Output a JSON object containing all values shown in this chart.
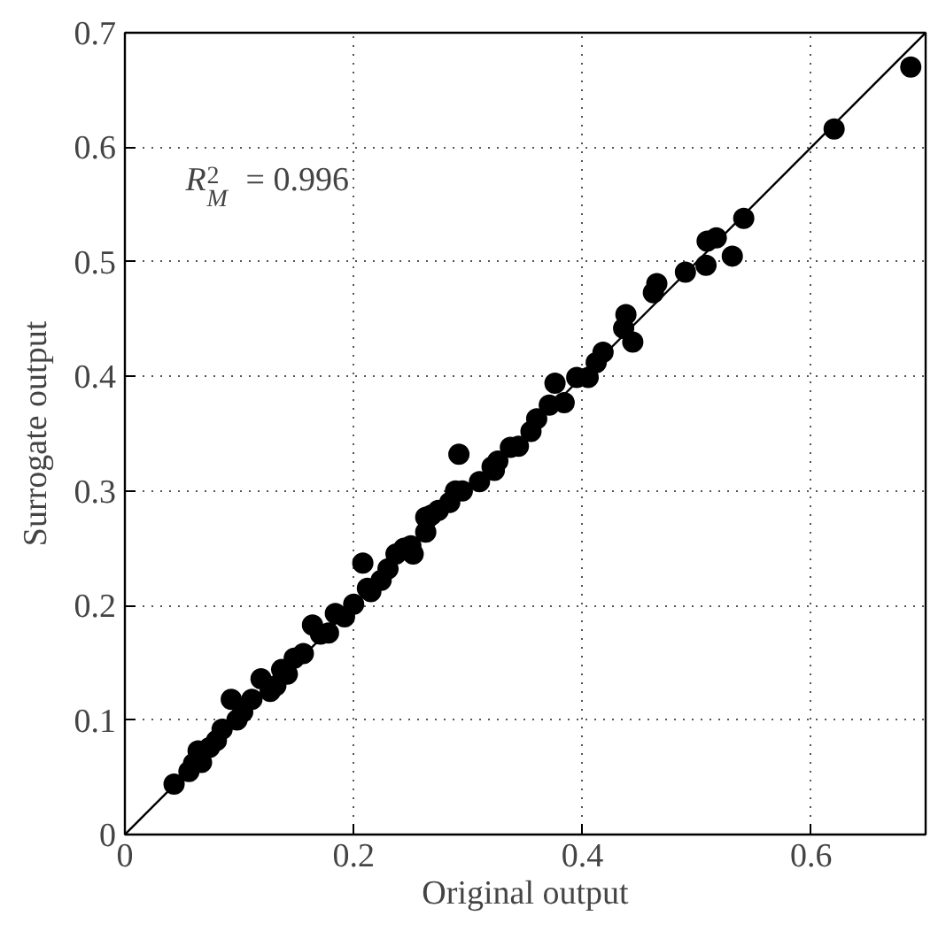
{
  "chart_data": {
    "type": "scatter",
    "xlabel": "Original output",
    "ylabel": "Surrogate output",
    "xlim": [
      0,
      0.7
    ],
    "ylim": [
      0,
      0.7
    ],
    "xticks": [
      0,
      0.2,
      0.4,
      0.6
    ],
    "yticks": [
      0,
      0.1,
      0.2,
      0.3,
      0.4,
      0.5,
      0.6,
      0.7
    ],
    "grid": true,
    "marker": "circle",
    "annotations": [
      "R$^{2}$$_{M}$ = 0.996"
    ],
    "series": [
      {
        "color": "#000000",
        "x": [
          0.687,
          0.62,
          0.541,
          0.517,
          0.509,
          0.531,
          0.508,
          0.49,
          0.465,
          0.462,
          0.438,
          0.436,
          0.444,
          0.418,
          0.412,
          0.405,
          0.395,
          0.376,
          0.384,
          0.371,
          0.36,
          0.355,
          0.344,
          0.337,
          0.326,
          0.323,
          0.292,
          0.31,
          0.295,
          0.284,
          0.274,
          0.263,
          0.321,
          0.289,
          0.268,
          0.263,
          0.237,
          0.208,
          0.224,
          0.2,
          0.184,
          0.164,
          0.171,
          0.148,
          0.137,
          0.119,
          0.127,
          0.111,
          0.093,
          0.103,
          0.085,
          0.074,
          0.064,
          0.067,
          0.056,
          0.043,
          0.25,
          0.23,
          0.215,
          0.192,
          0.178,
          0.156,
          0.142,
          0.132,
          0.098,
          0.08,
          0.06,
          0.252,
          0.244,
          0.212
        ],
        "values": [
          0.67,
          0.616,
          0.538,
          0.521,
          0.518,
          0.505,
          0.497,
          0.491,
          0.481,
          0.473,
          0.454,
          0.442,
          0.43,
          0.421,
          0.412,
          0.399,
          0.399,
          0.394,
          0.377,
          0.375,
          0.363,
          0.352,
          0.339,
          0.338,
          0.326,
          0.318,
          0.332,
          0.308,
          0.3,
          0.29,
          0.283,
          0.277,
          0.321,
          0.3,
          0.279,
          0.264,
          0.245,
          0.237,
          0.222,
          0.201,
          0.193,
          0.183,
          0.175,
          0.154,
          0.144,
          0.136,
          0.125,
          0.118,
          0.118,
          0.107,
          0.092,
          0.076,
          0.073,
          0.063,
          0.055,
          0.044,
          0.252,
          0.232,
          0.212,
          0.19,
          0.176,
          0.158,
          0.14,
          0.13,
          0.1,
          0.082,
          0.062,
          0.245,
          0.25,
          0.215
        ]
      },
      {
        "type": "line",
        "color": "#000000",
        "marker": "none",
        "x": [
          0,
          0.7
        ],
        "values": [
          0,
          0.7
        ]
      }
    ]
  }
}
